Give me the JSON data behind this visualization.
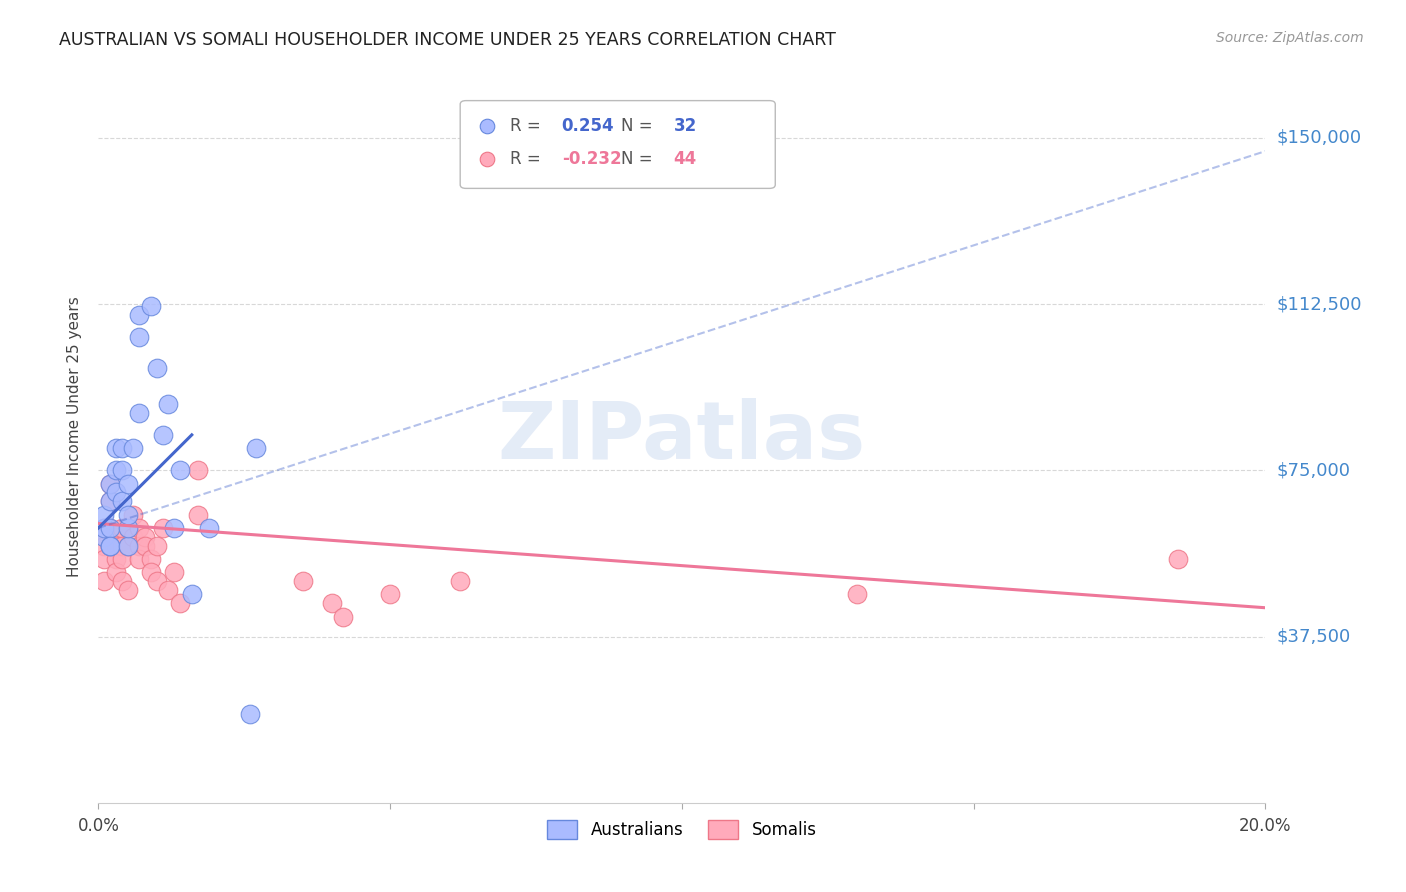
{
  "title": "AUSTRALIAN VS SOMALI HOUSEHOLDER INCOME UNDER 25 YEARS CORRELATION CHART",
  "source": "Source: ZipAtlas.com",
  "ylabel": "Householder Income Under 25 years",
  "xlim": [
    0.0,
    0.2
  ],
  "ylim": [
    0,
    165000
  ],
  "yticks": [
    37500,
    75000,
    112500,
    150000
  ],
  "ytick_labels": [
    "$37,500",
    "$75,000",
    "$112,500",
    "$150,000"
  ],
  "xticks": [
    0.0,
    0.05,
    0.1,
    0.15,
    0.2
  ],
  "xtick_labels": [
    "0.0%",
    "",
    "",
    "",
    "20.0%"
  ],
  "background_color": "#ffffff",
  "grid_color": "#d8d8d8",
  "australians": {
    "R": 0.254,
    "N": 32,
    "dot_color": "#aabbff",
    "dot_edge": "#6688dd",
    "line_color": "#4466cc",
    "x": [
      0.001,
      0.001,
      0.001,
      0.002,
      0.002,
      0.002,
      0.002,
      0.002,
      0.003,
      0.003,
      0.003,
      0.004,
      0.004,
      0.004,
      0.005,
      0.005,
      0.005,
      0.005,
      0.006,
      0.007,
      0.007,
      0.007,
      0.009,
      0.01,
      0.011,
      0.012,
      0.013,
      0.014,
      0.016,
      0.019,
      0.026,
      0.027
    ],
    "y": [
      60000,
      62000,
      65000,
      58000,
      62000,
      68000,
      72000,
      58000,
      75000,
      70000,
      80000,
      80000,
      75000,
      68000,
      58000,
      62000,
      65000,
      72000,
      80000,
      88000,
      105000,
      110000,
      112000,
      98000,
      83000,
      90000,
      62000,
      75000,
      47000,
      62000,
      20000,
      80000
    ],
    "solid_trend_x": [
      0.0,
      0.016
    ],
    "solid_trend_y": [
      62000,
      83000
    ],
    "dashed_trend_x": [
      0.0,
      0.2
    ],
    "dashed_trend_y": [
      62000,
      147000
    ]
  },
  "somalis": {
    "R": -0.232,
    "N": 44,
    "dot_color": "#ffaabb",
    "dot_edge": "#ee7788",
    "line_color": "#ee7799",
    "x": [
      0.001,
      0.001,
      0.001,
      0.001,
      0.001,
      0.002,
      0.002,
      0.002,
      0.002,
      0.003,
      0.003,
      0.003,
      0.003,
      0.004,
      0.004,
      0.004,
      0.004,
      0.005,
      0.005,
      0.005,
      0.006,
      0.006,
      0.007,
      0.007,
      0.007,
      0.008,
      0.008,
      0.009,
      0.009,
      0.01,
      0.01,
      0.011,
      0.012,
      0.013,
      0.014,
      0.017,
      0.017,
      0.035,
      0.04,
      0.042,
      0.05,
      0.062,
      0.13,
      0.185
    ],
    "y": [
      60000,
      58000,
      55000,
      62000,
      50000,
      58000,
      72000,
      68000,
      62000,
      60000,
      58000,
      55000,
      52000,
      62000,
      58000,
      55000,
      50000,
      62000,
      58000,
      48000,
      65000,
      60000,
      58000,
      62000,
      55000,
      60000,
      58000,
      55000,
      52000,
      58000,
      50000,
      62000,
      48000,
      52000,
      45000,
      75000,
      65000,
      50000,
      45000,
      42000,
      47000,
      50000,
      47000,
      55000
    ],
    "trend_x": [
      0.0,
      0.2
    ],
    "trend_y": [
      63000,
      44000
    ]
  },
  "legend": {
    "aus_label": "R =  0.254   N = 32",
    "som_label": "R = -0.232   N = 44",
    "aus_R": "0.254",
    "aus_N": "32",
    "som_R": "-0.232",
    "som_N": "44",
    "aus_text_color": "#4466cc",
    "som_text_color": "#ee7799"
  }
}
